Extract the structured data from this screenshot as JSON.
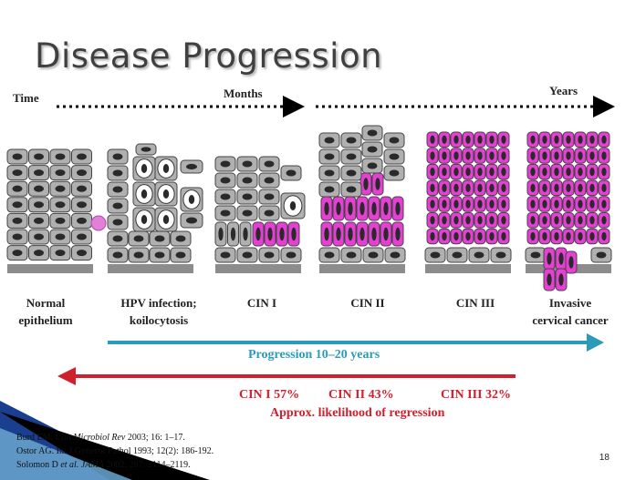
{
  "title": "Disease Progression",
  "timeline": {
    "time_label": "Time",
    "months_label": "Months",
    "years_label": "Years"
  },
  "stages": [
    {
      "line1": "Normal",
      "line2": "epithelium"
    },
    {
      "line1": "HPV infection;",
      "line2": "koilocytosis"
    },
    {
      "line1": "CIN I",
      "line2": ""
    },
    {
      "line1": "CIN II",
      "line2": ""
    },
    {
      "line1": "CIN III",
      "line2": ""
    },
    {
      "line1": "Invasive",
      "line2": "cervical cancer"
    }
  ],
  "progression": {
    "label": "Progression 10–20 years"
  },
  "regression": {
    "values": [
      {
        "label": "CIN I 57%"
      },
      {
        "label": "CIN II 43%"
      },
      {
        "label": "CIN III 32%"
      }
    ],
    "caption": "Approx. likelihood of regression"
  },
  "references": [
    {
      "pre": "Burd EM. ",
      "journal": "Clin Microbiol Rev",
      "post": " 2003; 16: 1–17."
    },
    {
      "pre": "Ostor AG. Int J Gynecol Pathol 1993; 12(2): 186-192.",
      "journal": "",
      "post": ""
    },
    {
      "pre": "Solomon D ",
      "journal": "et al. JAMA",
      "post": " 2002; 287: 2114–2119."
    }
  ],
  "page_number": "18",
  "colors": {
    "normal_cell": "#b0b0b0",
    "dysplastic_cell": "#e53fd4",
    "basement": "#8c8c8c",
    "progression_arrow": "#2a9bb8",
    "regression_arrow": "#d0202e",
    "nucleus": "#2a2a2a"
  }
}
